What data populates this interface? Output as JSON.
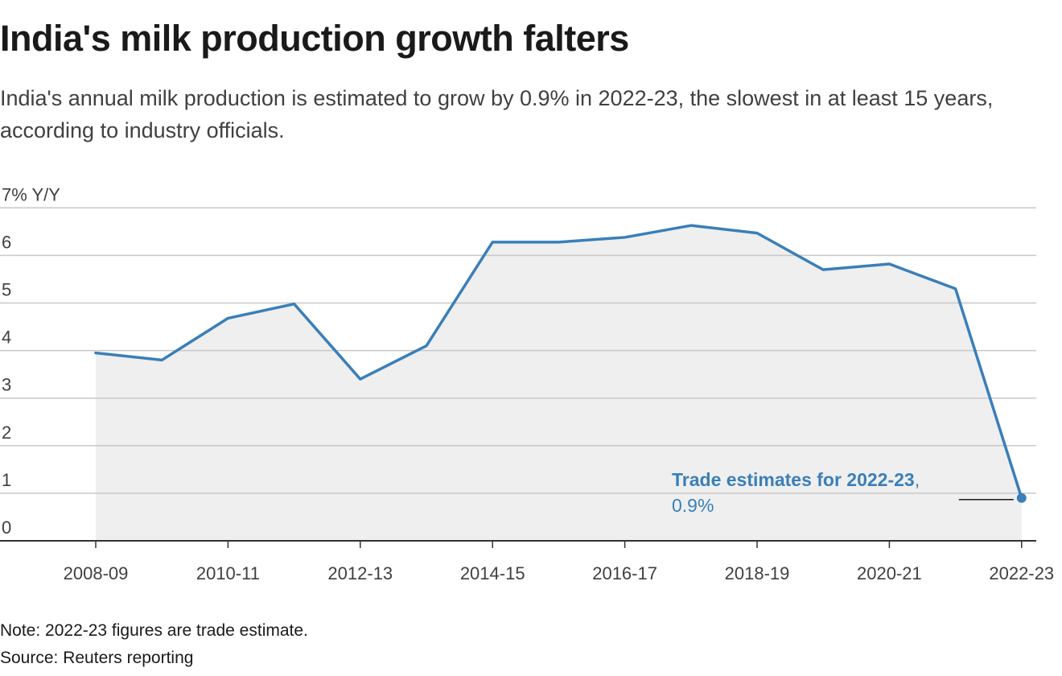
{
  "header": {
    "title": "India's milk production growth falters",
    "subtitle": "India's annual milk production is estimated to grow by 0.9% in 2022-23, the slowest in at least 15 years, according to industry officials."
  },
  "footer": {
    "note": "Note: 2022-23 figures are trade estimate.",
    "source": "Source: Reuters reporting"
  },
  "colors": {
    "line": "#3a7fb9",
    "area": "#efefef",
    "grid": "#c8c8c8",
    "axis": "#333333",
    "text": "#404040"
  },
  "chart_data": {
    "type": "area",
    "title": "India's milk production growth falters",
    "ylabel": "7% Y/Y",
    "ylim": [
      0,
      7
    ],
    "y_ticks": [
      0,
      1,
      2,
      3,
      4,
      5,
      6,
      7
    ],
    "y_tick_labels": [
      "0",
      "1",
      "2",
      "3",
      "4",
      "5",
      "6",
      "7% Y/Y"
    ],
    "x_tick_labels": [
      "2008-09",
      "2010-11",
      "2012-13",
      "2014-15",
      "2016-17",
      "2018-19",
      "2020-21",
      "2022-23"
    ],
    "grid": true,
    "categories": [
      "2008-09",
      "2009-10",
      "2010-11",
      "2011-12",
      "2012-13",
      "2013-14",
      "2014-15",
      "2015-16",
      "2016-17",
      "2017-18",
      "2018-19",
      "2019-20",
      "2020-21",
      "2021-22",
      "2022-23"
    ],
    "series": [
      {
        "values": [
          3.95,
          3.8,
          4.68,
          4.98,
          3.4,
          4.1,
          6.28,
          6.28,
          6.38,
          6.63,
          6.47,
          5.7,
          5.82,
          5.3,
          0.9
        ]
      }
    ],
    "annotations": [
      {
        "category": "2022-23",
        "label": "Trade estimates for 2022-23",
        "separator": ",",
        "value_text": "0.9%"
      }
    ]
  }
}
